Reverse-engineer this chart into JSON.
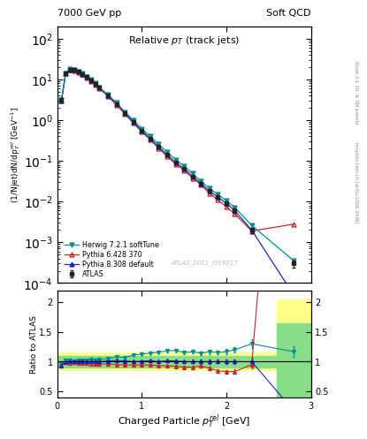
{
  "title_left": "7000 GeV pp",
  "title_right": "Soft QCD",
  "plot_title": "Relative $p_T$ (track jets)",
  "xlabel": "Charged Particle $p_T^{rel}$ [GeV]",
  "ylabel_main": "(1/Njet)dN/dp$_T^{rel}$ [GeV$^{-1}$]",
  "ylabel_ratio": "Ratio to ATLAS",
  "right_label_top": "Rivet 3.1.10, ≥ 3M",
  "right_label_bot": "mcplots.cern.ch [arXiv:1306.3436]",
  "watermark": "ATLAS_2011_I919017",
  "atlas_x": [
    0.05,
    0.1,
    0.15,
    0.2,
    0.25,
    0.3,
    0.35,
    0.4,
    0.45,
    0.5,
    0.6,
    0.7,
    0.8,
    0.9,
    1.0,
    1.1,
    1.2,
    1.3,
    1.4,
    1.5,
    1.6,
    1.7,
    1.8,
    1.9,
    2.0,
    2.1,
    2.3,
    2.8
  ],
  "atlas_y": [
    3.2,
    14.0,
    17.5,
    17.0,
    15.5,
    13.5,
    11.5,
    9.5,
    7.8,
    6.2,
    4.0,
    2.5,
    1.5,
    0.9,
    0.55,
    0.35,
    0.22,
    0.14,
    0.09,
    0.065,
    0.042,
    0.028,
    0.018,
    0.013,
    0.009,
    0.006,
    0.002,
    0.0003
  ],
  "atlas_yerr": [
    0.3,
    0.5,
    0.6,
    0.5,
    0.5,
    0.4,
    0.4,
    0.3,
    0.3,
    0.2,
    0.15,
    0.1,
    0.07,
    0.04,
    0.025,
    0.016,
    0.01,
    0.007,
    0.005,
    0.004,
    0.003,
    0.002,
    0.0015,
    0.001,
    0.0008,
    0.0006,
    0.0003,
    6e-05
  ],
  "herwig_y": [
    3.1,
    14.2,
    17.8,
    17.2,
    15.8,
    13.8,
    11.8,
    9.8,
    8.0,
    6.4,
    4.2,
    2.7,
    1.6,
    1.0,
    0.62,
    0.4,
    0.255,
    0.165,
    0.107,
    0.075,
    0.049,
    0.032,
    0.021,
    0.015,
    0.0105,
    0.0072,
    0.0026,
    0.00035
  ],
  "pythia6_y": [
    3.05,
    13.8,
    17.2,
    16.8,
    15.2,
    13.2,
    11.2,
    9.2,
    7.5,
    5.95,
    3.85,
    2.38,
    1.42,
    0.85,
    0.52,
    0.33,
    0.205,
    0.13,
    0.083,
    0.059,
    0.038,
    0.026,
    0.016,
    0.011,
    0.0075,
    0.005,
    0.0019,
    0.0028
  ],
  "pythia8_y": [
    3.0,
    13.9,
    17.5,
    17.0,
    15.5,
    13.5,
    11.5,
    9.5,
    7.8,
    6.2,
    4.05,
    2.55,
    1.52,
    0.9,
    0.555,
    0.355,
    0.22,
    0.142,
    0.091,
    0.065,
    0.042,
    0.028,
    0.018,
    0.013,
    0.009,
    0.006,
    0.002,
    5e-05
  ],
  "atlas_color": "#222222",
  "herwig_color": "#009090",
  "pythia6_color": "#cc2222",
  "pythia8_color": "#2222cc",
  "xlim": [
    0.0,
    3.0
  ],
  "ylim_main": [
    0.0001,
    200
  ],
  "ylim_ratio": [
    0.4,
    2.2
  ],
  "ratio_yticks": [
    0.5,
    1.0,
    1.5,
    2.0
  ],
  "ratio_yticklabels": [
    "0.5",
    "1",
    "1.5",
    "2"
  ],
  "band_x_split": 2.6,
  "band_yellow_lo": 0.85,
  "band_yellow_hi": 1.15,
  "band_green_lo": 0.9,
  "band_green_hi": 1.1,
  "last_yellow_lo": 0.4,
  "last_yellow_hi": 2.05,
  "last_green_lo": 0.4,
  "last_green_hi": 1.65,
  "yellow_color": "#ffff88",
  "green_color": "#88dd88"
}
